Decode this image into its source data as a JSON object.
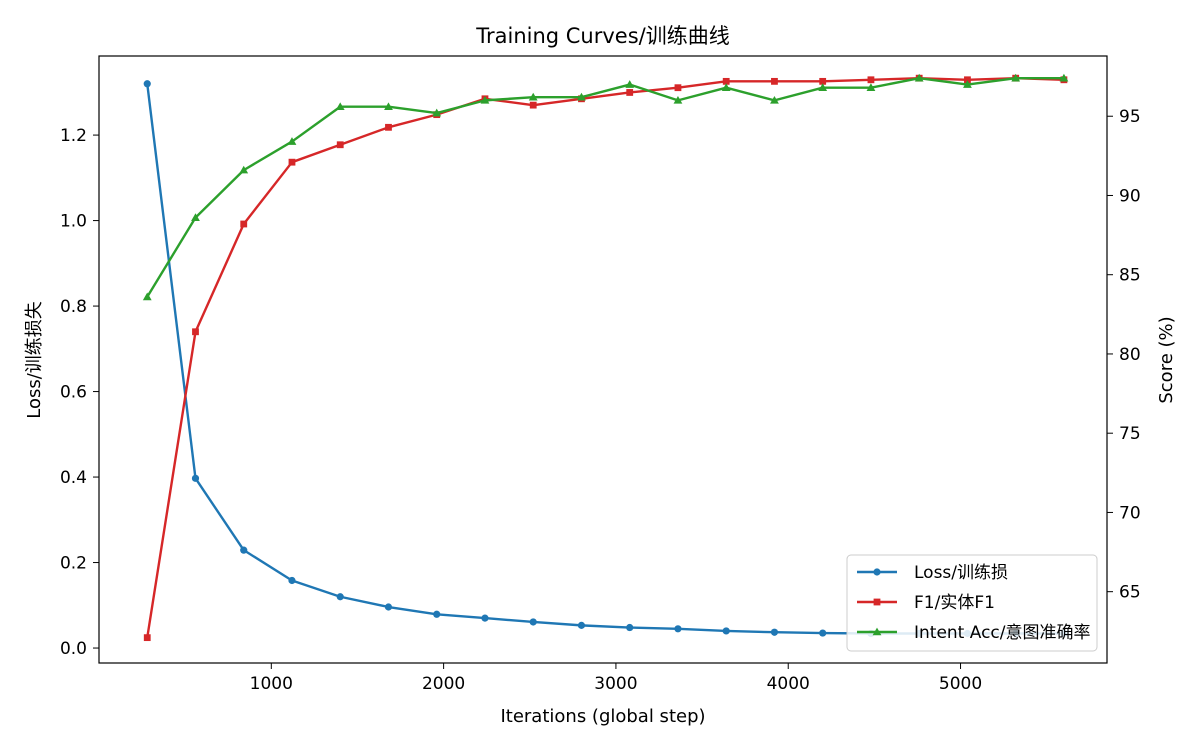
{
  "chart_data": {
    "type": "line",
    "title": "Training Curves/训练曲线",
    "xlabel": "Iterations (global step)",
    "ylabel_left": "Loss/训练损失",
    "ylabel_right": "Score (%)",
    "xlim": [
      0,
      5850
    ],
    "ylim_left": [
      -0.035,
      1.385
    ],
    "ylim_right": [
      60.5,
      98.8
    ],
    "x_ticks": [
      1000,
      2000,
      3000,
      4000,
      5000
    ],
    "y_ticks_left": [
      0.0,
      0.2,
      0.4,
      0.6,
      0.8,
      1.0,
      1.2
    ],
    "y_ticks_right": [
      65,
      70,
      75,
      80,
      85,
      90,
      95
    ],
    "grid": false,
    "legend_position": "lower-right",
    "x": [
      280,
      560,
      840,
      1120,
      1400,
      1680,
      1960,
      2240,
      2520,
      2800,
      3080,
      3360,
      3640,
      3920,
      4200,
      4480,
      4760,
      5040,
      5320,
      5600
    ],
    "series": [
      {
        "name": "Loss/训练损",
        "axis": "left",
        "color": "#1f77b4",
        "marker": "circle",
        "values": [
          1.32,
          0.397,
          0.229,
          0.158,
          0.12,
          0.096,
          0.079,
          0.07,
          0.061,
          0.053,
          0.048,
          0.045,
          0.04,
          0.037,
          0.035,
          0.034,
          0.034,
          0.034,
          0.034,
          0.034
        ]
      },
      {
        "name": "F1/实体F1",
        "axis": "right",
        "color": "#d62728",
        "marker": "square",
        "values": [
          62.1,
          81.4,
          88.2,
          92.1,
          93.2,
          94.3,
          95.1,
          96.1,
          95.7,
          96.1,
          96.5,
          96.8,
          97.2,
          97.2,
          97.2,
          97.3,
          97.4,
          97.3,
          97.4,
          97.3
        ]
      },
      {
        "name": "Intent Acc/意图准确率",
        "axis": "right",
        "color": "#2ca02c",
        "marker": "triangle",
        "values": [
          83.6,
          88.6,
          91.6,
          93.4,
          95.6,
          95.6,
          95.2,
          96.0,
          96.2,
          96.2,
          97.0,
          96.0,
          96.8,
          96.0,
          96.8,
          96.8,
          97.4,
          97.0,
          97.4,
          97.4
        ]
      }
    ]
  }
}
